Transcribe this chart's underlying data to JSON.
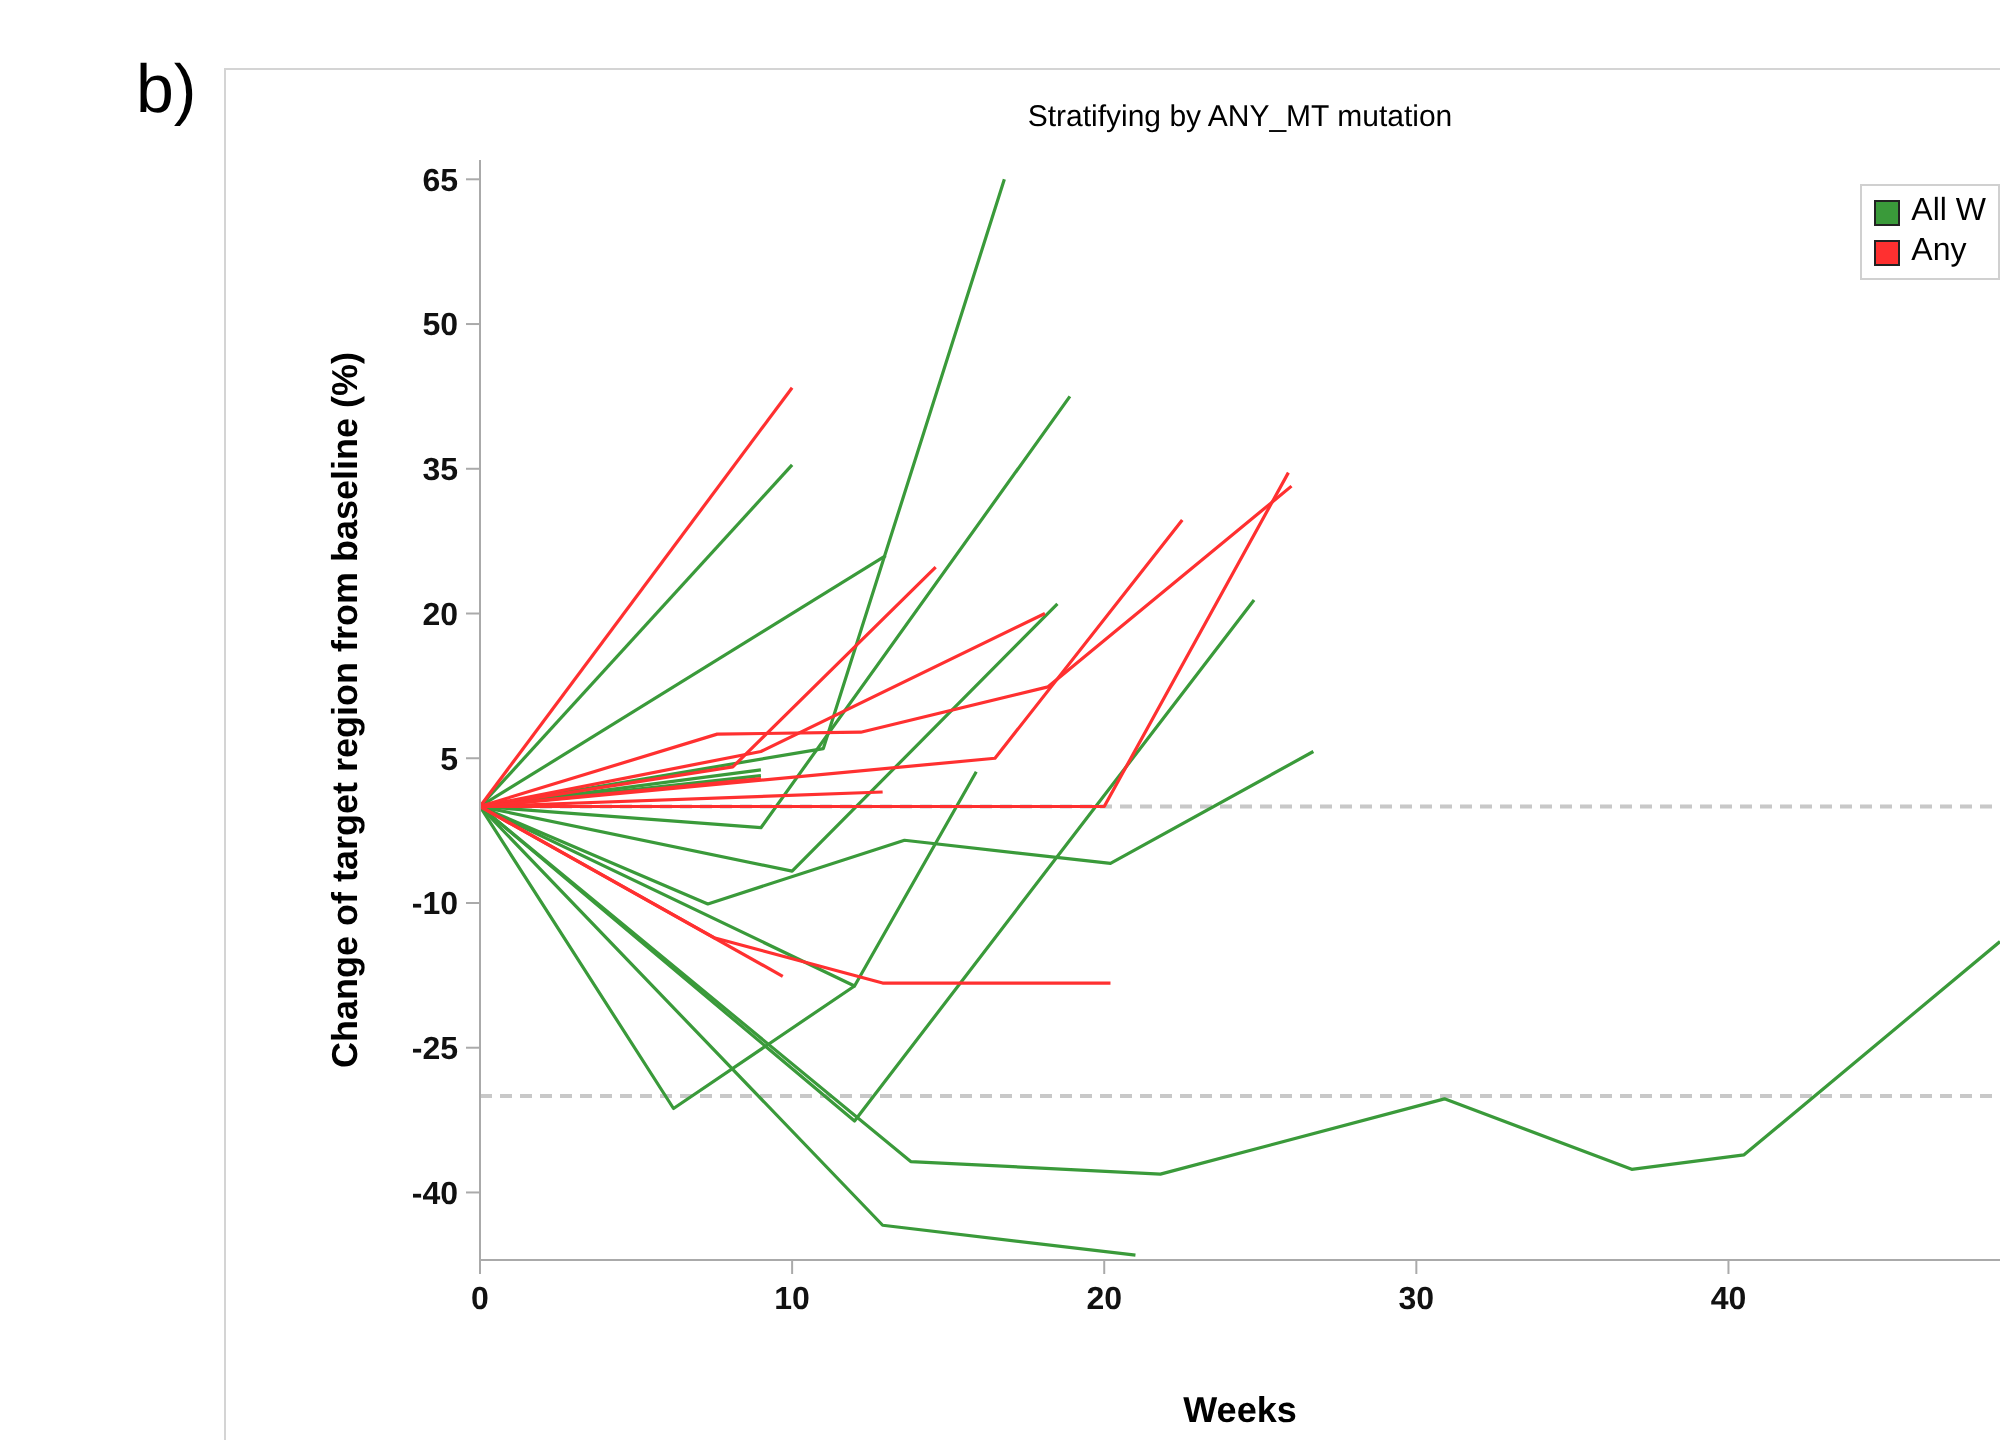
{
  "chart_data": {
    "type": "line",
    "title": "Stratifying by ANY_MT mutation",
    "xlabel": "Weeks",
    "ylabel": "Change of target region from baseline (%)",
    "annotations": [
      "b)"
    ],
    "xlim": [
      0,
      48.7
    ],
    "xticks": [
      0,
      10,
      20,
      30,
      40
    ],
    "ylim": [
      -47,
      67
    ],
    "yticks": [
      65,
      50,
      35,
      20,
      5,
      -10,
      -25,
      -40
    ],
    "grid": false,
    "legend": "top right",
    "marker": "none",
    "line_style": "solid",
    "ref_lines": [
      {
        "axis": "y",
        "value": 0,
        "color": "#c8c8c8",
        "line_style": "dashed"
      },
      {
        "axis": "y",
        "value": -30,
        "color": "#c8c8c8",
        "line_style": "dashed"
      }
    ],
    "series": [
      {
        "name": "All W",
        "color": "#3a9a3a",
        "x": [
          0,
          10
        ],
        "values": [
          0,
          35.4
        ]
      },
      {
        "color": "#3a9a3a",
        "x": [
          0,
          13
        ],
        "values": [
          0,
          26
        ]
      },
      {
        "color": "#3a9a3a",
        "x": [
          0,
          9,
          18.9
        ],
        "values": [
          0,
          -2.2,
          42.5
        ]
      },
      {
        "color": "#3a9a3a",
        "x": [
          0,
          11,
          16.8
        ],
        "values": [
          0,
          6,
          65
        ]
      },
      {
        "color": "#3a9a3a",
        "x": [
          0,
          9
        ],
        "values": [
          0,
          3.8
        ]
      },
      {
        "color": "#3a9a3a",
        "x": [
          0,
          9
        ],
        "values": [
          0,
          3.2
        ]
      },
      {
        "color": "#3a9a3a",
        "x": [
          0,
          10,
          18.5
        ],
        "values": [
          0,
          -6.7,
          21
        ]
      },
      {
        "color": "#3a9a3a",
        "x": [
          0,
          7.3,
          13.6,
          20.2,
          26.7
        ],
        "values": [
          0,
          -10.1,
          -3.5,
          -5.9,
          5.7
        ]
      },
      {
        "color": "#3a9a3a",
        "x": [
          0,
          12,
          24.8
        ],
        "values": [
          0,
          -32.6,
          21.4
        ]
      },
      {
        "color": "#3a9a3a",
        "x": [
          0,
          6.2,
          12
        ],
        "values": [
          0,
          -31.3,
          -18.6
        ]
      },
      {
        "color": "#3a9a3a",
        "x": [
          0,
          12,
          15.9
        ],
        "values": [
          0,
          -18.6,
          3.6
        ]
      },
      {
        "color": "#3a9a3a",
        "x": [
          0,
          13.8,
          21.8,
          30.9,
          36.9,
          40.5,
          48.7
        ],
        "values": [
          0,
          -36.8,
          -38.1,
          -30.3,
          -37.6,
          -36.1,
          -14
        ]
      },
      {
        "color": "#3a9a3a",
        "x": [
          0,
          12.9,
          21
        ],
        "values": [
          0,
          -43.4,
          -46.5
        ]
      },
      {
        "name": "Any",
        "color": "#ff3030",
        "x": [
          0,
          10
        ],
        "values": [
          0,
          43.4
        ]
      },
      {
        "color": "#ff3030",
        "x": [
          0,
          8.1,
          14.6
        ],
        "values": [
          0,
          4.1,
          24.8
        ]
      },
      {
        "color": "#ff3030",
        "x": [
          0,
          9,
          18.1
        ],
        "values": [
          0,
          5.7,
          20
        ]
      },
      {
        "color": "#ff3030",
        "x": [
          0,
          7.6,
          12.2,
          18.2,
          26
        ],
        "values": [
          0,
          7.5,
          7.7,
          12.4,
          33.2
        ]
      },
      {
        "color": "#ff3030",
        "x": [
          0,
          16.5,
          22.5
        ],
        "values": [
          0,
          5,
          29.7
        ]
      },
      {
        "color": "#ff3030",
        "x": [
          0,
          20,
          25.9
        ],
        "values": [
          0,
          0,
          34.6
        ]
      },
      {
        "color": "#ff3030",
        "x": [
          0,
          12.9
        ],
        "values": [
          0,
          1.5
        ]
      },
      {
        "color": "#ff3030",
        "x": [
          0,
          9
        ],
        "values": [
          0,
          2.9
        ]
      },
      {
        "color": "#ff3030",
        "x": [
          0,
          9.7
        ],
        "values": [
          0,
          -17.6
        ]
      },
      {
        "color": "#ff3030",
        "x": [
          0,
          7.5,
          12.9,
          20.2
        ],
        "values": [
          0,
          -13.6,
          -18.3,
          -18.3
        ]
      }
    ]
  }
}
